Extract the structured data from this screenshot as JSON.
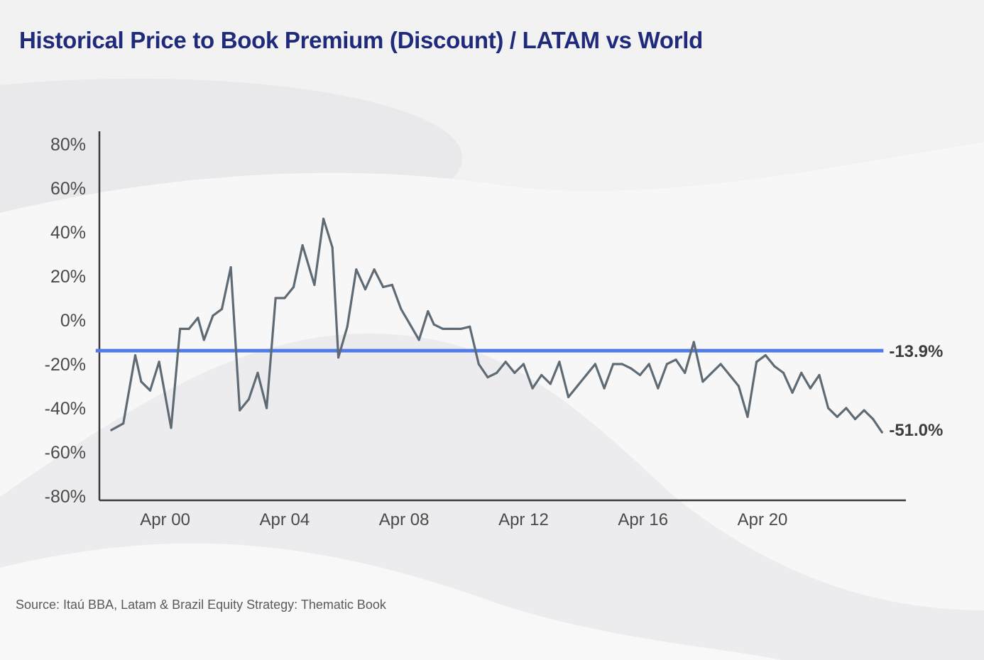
{
  "title": "Historical Price to Book Premium (Discount) / LATAM vs World",
  "source": "Source: Itaú BBA, Latam & Brazil Equity Strategy: Thematic Book",
  "colors": {
    "title": "#1f2a7a",
    "series": "#5f6b74",
    "average": "#4f7ae8",
    "axis": "#3a3a3a"
  },
  "chart_data": {
    "type": "line",
    "title": "Historical Price to Book Premium (Discount) / LATAM vs World",
    "xlabel": "",
    "ylabel": "",
    "ylim": [
      -80,
      80
    ],
    "xlim": [
      -2.2,
      24.8
    ],
    "grid": false,
    "y_ticks": [
      80,
      60,
      40,
      20,
      0,
      -20,
      -40,
      -60,
      -80
    ],
    "y_tick_labels": [
      "80%",
      "60%",
      "40%",
      "20%",
      "0%",
      "-20%",
      "-40%",
      "-60%",
      "-80%"
    ],
    "x_ticks": [
      0,
      4,
      8,
      12,
      16,
      20
    ],
    "x_tick_labels": [
      "Apr 00",
      "Apr 04",
      "Apr 08",
      "Apr 12",
      "Apr 16",
      "Apr 20"
    ],
    "series": [
      {
        "name": "P/B premium (discount) LATAM vs World",
        "x": [
          -1.8,
          -1.4,
          -1.0,
          -0.8,
          -0.5,
          -0.2,
          0.2,
          0.5,
          0.8,
          1.1,
          1.3,
          1.6,
          1.9,
          2.2,
          2.5,
          2.8,
          3.1,
          3.4,
          3.7,
          4.0,
          4.3,
          4.6,
          5.0,
          5.3,
          5.6,
          5.8,
          6.1,
          6.4,
          6.7,
          7.0,
          7.3,
          7.6,
          7.9,
          8.2,
          8.5,
          8.8,
          9.0,
          9.3,
          9.6,
          9.9,
          10.2,
          10.5,
          10.8,
          11.1,
          11.4,
          11.7,
          12.0,
          12.3,
          12.6,
          12.9,
          13.2,
          13.5,
          13.8,
          14.1,
          14.4,
          14.7,
          15.0,
          15.3,
          15.6,
          15.9,
          16.2,
          16.5,
          16.8,
          17.1,
          17.4,
          17.7,
          18.0,
          18.3,
          18.6,
          18.9,
          19.2,
          19.5,
          19.8,
          20.1,
          20.4,
          20.7,
          21.0,
          21.3,
          21.6,
          21.9,
          22.2,
          22.5,
          22.8,
          23.1,
          23.4,
          23.7,
          24.0
        ],
        "values": [
          -50,
          -47,
          -16,
          -28,
          -32,
          -19,
          -49,
          -4,
          -4,
          1,
          -9,
          2,
          5,
          24,
          -41,
          -36,
          -24,
          -40,
          10,
          10,
          15,
          34,
          16,
          46,
          33,
          -17,
          -3,
          23,
          14,
          23,
          15,
          16,
          5,
          -2,
          -9,
          4,
          -2,
          -4,
          -4,
          -4,
          -3,
          -20,
          -26,
          -24,
          -19,
          -24,
          -20,
          -31,
          -25,
          -29,
          -19,
          -35,
          -30,
          -25,
          -20,
          -31,
          -20,
          -20,
          -22,
          -25,
          -20,
          -31,
          -20,
          -18,
          -24,
          -10,
          -28,
          -24,
          -20,
          -25,
          -30,
          -44,
          -19,
          -16,
          -21,
          -24,
          -33,
          -24,
          -31,
          -25,
          -40,
          -44,
          -40,
          -45,
          -41,
          -45,
          -51
        ]
      },
      {
        "name": "Average",
        "values": [
          -13.9
        ]
      }
    ],
    "annotations": [
      {
        "label": "-13.9%",
        "value": -13.9,
        "series": "Average"
      },
      {
        "label": "-51.0%",
        "value": -51.0,
        "series": "P/B premium (discount) LATAM vs World"
      }
    ]
  }
}
